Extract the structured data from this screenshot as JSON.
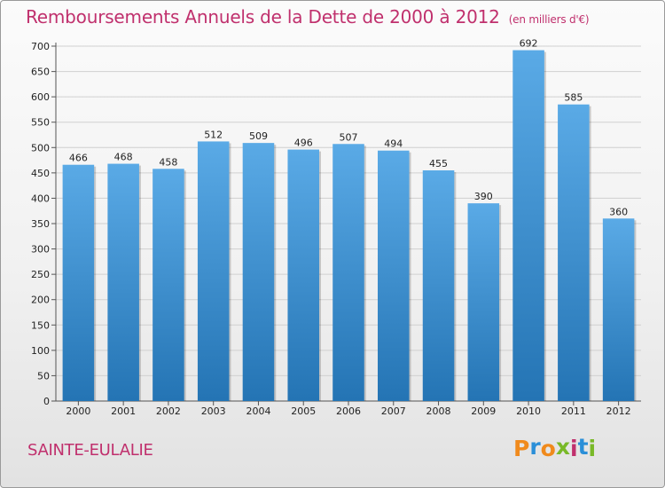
{
  "title": "Remboursements Annuels de la Dette de 2000 à 2012",
  "subtitle": "(en milliers d'€)",
  "commune": "SAINTE-EULALIE",
  "logo": {
    "letters": [
      "P",
      "r",
      "o",
      "x",
      "i",
      "t",
      "i"
    ],
    "colors": [
      "#f08a1c",
      "#2a8fd8",
      "#f08a1c",
      "#79b928",
      "#c0306d",
      "#2a8fd8",
      "#79b928"
    ]
  },
  "colors": {
    "title": "#c0306d",
    "bar_top": "#5aaae6",
    "bar_bottom": "#2474b4",
    "grid": "#d0d0d0"
  },
  "chart_data": {
    "type": "bar",
    "categories": [
      "2000",
      "2001",
      "2002",
      "2003",
      "2004",
      "2005",
      "2006",
      "2007",
      "2008",
      "2009",
      "2010",
      "2011",
      "2012"
    ],
    "values": [
      466,
      468,
      458,
      512,
      509,
      496,
      507,
      494,
      455,
      390,
      692,
      585,
      360
    ],
    "ylim": [
      0,
      700
    ],
    "yticks": [
      0,
      50,
      100,
      150,
      200,
      250,
      300,
      350,
      400,
      450,
      500,
      550,
      600,
      650,
      700
    ],
    "grid": true,
    "xlabel": "",
    "ylabel": ""
  }
}
